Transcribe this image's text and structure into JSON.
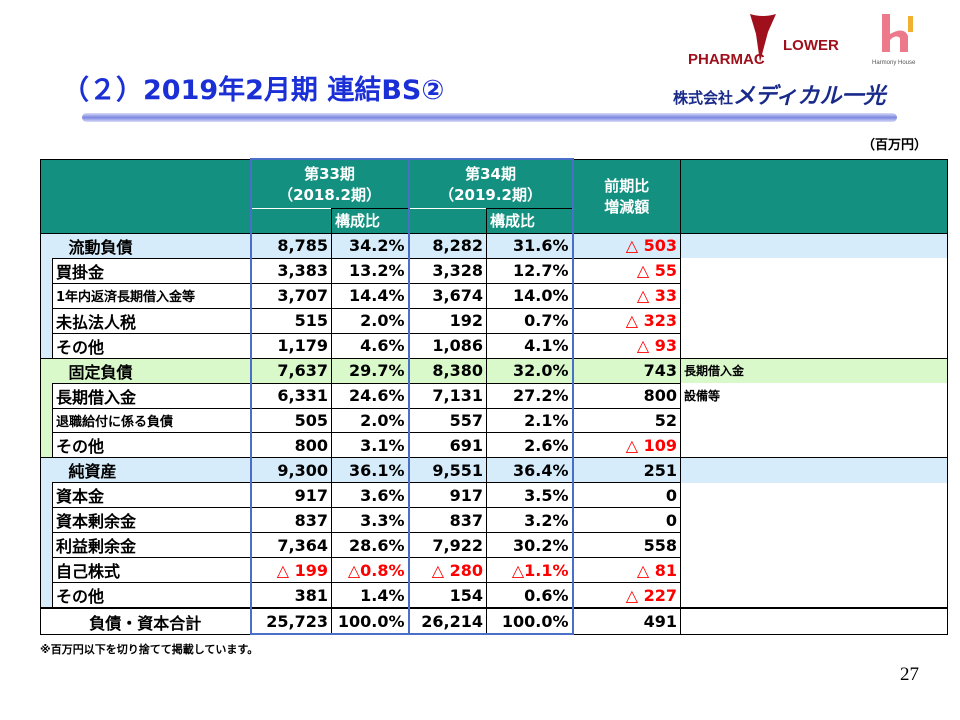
{
  "title": "（２）2019年2月期 連結BS②",
  "logos": {
    "pharmac_flower": "PHARMAC FLOWER",
    "harmony_house": "Harmony House",
    "company": "株式会社メディカル一光"
  },
  "unit": "（百万円）",
  "header": {
    "period33": "第33期",
    "period33_sub": "（2018.2期）",
    "period34": "第34期",
    "period34_sub": "（2019.2期）",
    "ratio": "構成比",
    "change": "前期比",
    "change_sub": "増減額"
  },
  "colors": {
    "header": "#13907f",
    "current_liab": "#d6ecfa",
    "fixed_liab": "#d9f9cb",
    "net_assets": "#d6ecfa",
    "negative": "#ff0000",
    "period_border": "#4a6fc8"
  },
  "rows": [
    {
      "label": "流動負債",
      "type": "section",
      "group": "current_liab",
      "v33": "8,785",
      "r33": "34.2%",
      "v34": "8,282",
      "r34": "31.6%",
      "diff": "△ 503",
      "note": ""
    },
    {
      "label": "買掛金",
      "type": "sub",
      "group": "current_liab",
      "v33": "3,383",
      "r33": "13.2%",
      "v34": "3,328",
      "r34": "12.7%",
      "diff": "△ 55",
      "note": ""
    },
    {
      "label": "1年内返済長期借入金等",
      "type": "sub",
      "group": "current_liab",
      "v33": "3,707",
      "r33": "14.4%",
      "v34": "3,674",
      "r34": "14.0%",
      "diff": "△ 33",
      "note": ""
    },
    {
      "label": "未払法人税",
      "type": "sub",
      "group": "current_liab",
      "v33": "515",
      "r33": "2.0%",
      "v34": "192",
      "r34": "0.7%",
      "diff": "△ 323",
      "note": ""
    },
    {
      "label": "その他",
      "type": "sub",
      "group": "current_liab",
      "v33": "1,179",
      "r33": "4.6%",
      "v34": "1,086",
      "r34": "4.1%",
      "diff": "△ 93",
      "note": ""
    },
    {
      "label": "固定負債",
      "type": "section",
      "group": "fixed_liab",
      "v33": "7,637",
      "r33": "29.7%",
      "v34": "8,380",
      "r34": "32.0%",
      "diff": "743",
      "note": "長期借入金"
    },
    {
      "label": "長期借入金",
      "type": "sub",
      "group": "fixed_liab",
      "v33": "6,331",
      "r33": "24.6%",
      "v34": "7,131",
      "r34": "27.2%",
      "diff": "800",
      "note": "設備等"
    },
    {
      "label": "退職給付に係る負債",
      "type": "sub",
      "group": "fixed_liab",
      "v33": "505",
      "r33": "2.0%",
      "v34": "557",
      "r34": "2.1%",
      "diff": "52",
      "note": ""
    },
    {
      "label": "その他",
      "type": "sub",
      "group": "fixed_liab",
      "v33": "800",
      "r33": "3.1%",
      "v34": "691",
      "r34": "2.6%",
      "diff": "△ 109",
      "note": ""
    },
    {
      "label": "純資産",
      "type": "section",
      "group": "net_assets",
      "v33": "9,300",
      "r33": "36.1%",
      "v34": "9,551",
      "r34": "36.4%",
      "diff": "251",
      "note": ""
    },
    {
      "label": "資本金",
      "type": "sub",
      "group": "net_assets",
      "v33": "917",
      "r33": "3.6%",
      "v34": "917",
      "r34": "3.5%",
      "diff": "0",
      "note": ""
    },
    {
      "label": "資本剰余金",
      "type": "sub",
      "group": "net_assets",
      "v33": "837",
      "r33": "3.3%",
      "v34": "837",
      "r34": "3.2%",
      "diff": "0",
      "note": ""
    },
    {
      "label": "利益剰余金",
      "type": "sub",
      "group": "net_assets",
      "v33": "7,364",
      "r33": "28.6%",
      "v34": "7,922",
      "r34": "30.2%",
      "diff": "558",
      "note": ""
    },
    {
      "label": "自己株式",
      "type": "sub",
      "group": "net_assets",
      "v33": "△ 199",
      "r33": "△0.8%",
      "v34": "△ 280",
      "r34": "△1.1%",
      "diff": "△ 81",
      "note": ""
    },
    {
      "label": "その他",
      "type": "sub",
      "group": "net_assets",
      "v33": "381",
      "r33": "1.4%",
      "v34": "154",
      "r34": "0.6%",
      "diff": "△ 227",
      "note": ""
    },
    {
      "label": "負債・資本合計",
      "type": "total",
      "group": "",
      "v33": "25,723",
      "r33": "100.0%",
      "v34": "26,214",
      "r34": "100.0%",
      "diff": "491",
      "note": ""
    }
  ],
  "footnote": "※百万円以下を切り捨てて掲載しています。",
  "page_number": "27"
}
